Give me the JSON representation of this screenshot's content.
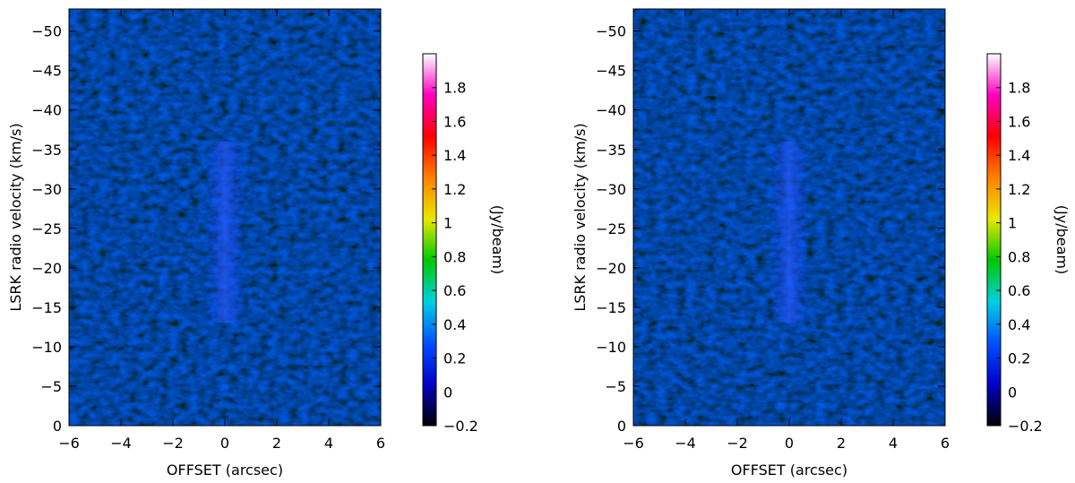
{
  "chart_data": [
    {
      "type": "heatmap",
      "x_label": "OFFSET (arcsec)",
      "y_label": "LSRK radio velocity  (km/s)",
      "colorbar_label": "(Jy/beam)",
      "xlim": [
        -6,
        6
      ],
      "ylim": [
        0,
        -52.8
      ],
      "xticks": [
        {
          "value": -6,
          "label": "−6"
        },
        {
          "value": -4,
          "label": "−4"
        },
        {
          "value": -2,
          "label": "−2"
        },
        0,
        2,
        4,
        6
      ],
      "yticks": [
        0,
        {
          "value": -5,
          "label": "−5"
        },
        {
          "value": -10,
          "label": "−10"
        },
        {
          "value": -15,
          "label": "−15"
        },
        {
          "value": -20,
          "label": "−20"
        },
        {
          "value": -25,
          "label": "−25"
        },
        {
          "value": -30,
          "label": "−30"
        },
        {
          "value": -35,
          "label": "−35"
        },
        {
          "value": -40,
          "label": "−40"
        },
        {
          "value": -45,
          "label": "−45"
        },
        {
          "value": -50,
          "label": "−50"
        }
      ],
      "clim": [
        -0.2,
        2.0
      ],
      "cticks": [
        {
          "value": -0.2,
          "label": "−0.2"
        },
        0,
        0.2,
        0.4,
        0.6,
        0.8,
        1,
        1.2,
        1.4,
        1.6,
        1.8
      ],
      "colormap": [
        "#000000",
        "#0000c8",
        "#0050ff",
        "#00d0e0",
        "#00c800",
        "#e8e800",
        "#ff8000",
        "#ff0000",
        "#ff00c0",
        "#ffffff"
      ]
    },
    {
      "type": "heatmap",
      "x_label": "OFFSET (arcsec)",
      "y_label": "LSRK radio velocity  (km/s)",
      "colorbar_label": "(Jy/beam)",
      "xlim": [
        -6,
        6
      ],
      "ylim": [
        0,
        -52.8
      ],
      "xticks": [
        {
          "value": -6,
          "label": "−6"
        },
        {
          "value": -4,
          "label": "−4"
        },
        {
          "value": -2,
          "label": "−2"
        },
        0,
        2,
        4,
        6
      ],
      "yticks": [
        0,
        {
          "value": -5,
          "label": "−5"
        },
        {
          "value": -10,
          "label": "−10"
        },
        {
          "value": -15,
          "label": "−15"
        },
        {
          "value": -20,
          "label": "−20"
        },
        {
          "value": -25,
          "label": "−25"
        },
        {
          "value": -30,
          "label": "−30"
        },
        {
          "value": -35,
          "label": "−35"
        },
        {
          "value": -40,
          "label": "−40"
        },
        {
          "value": -45,
          "label": "−45"
        },
        {
          "value": -50,
          "label": "−50"
        }
      ],
      "clim": [
        -0.2,
        2.0
      ],
      "cticks": [
        {
          "value": -0.2,
          "label": "−0.2"
        },
        0,
        0.2,
        0.4,
        0.6,
        0.8,
        1,
        1.2,
        1.4,
        1.6,
        1.8
      ],
      "colormap": [
        "#000000",
        "#0000c8",
        "#0050ff",
        "#00d0e0",
        "#00c800",
        "#e8e800",
        "#ff8000",
        "#ff0000",
        "#ff00c0",
        "#ffffff"
      ]
    }
  ]
}
